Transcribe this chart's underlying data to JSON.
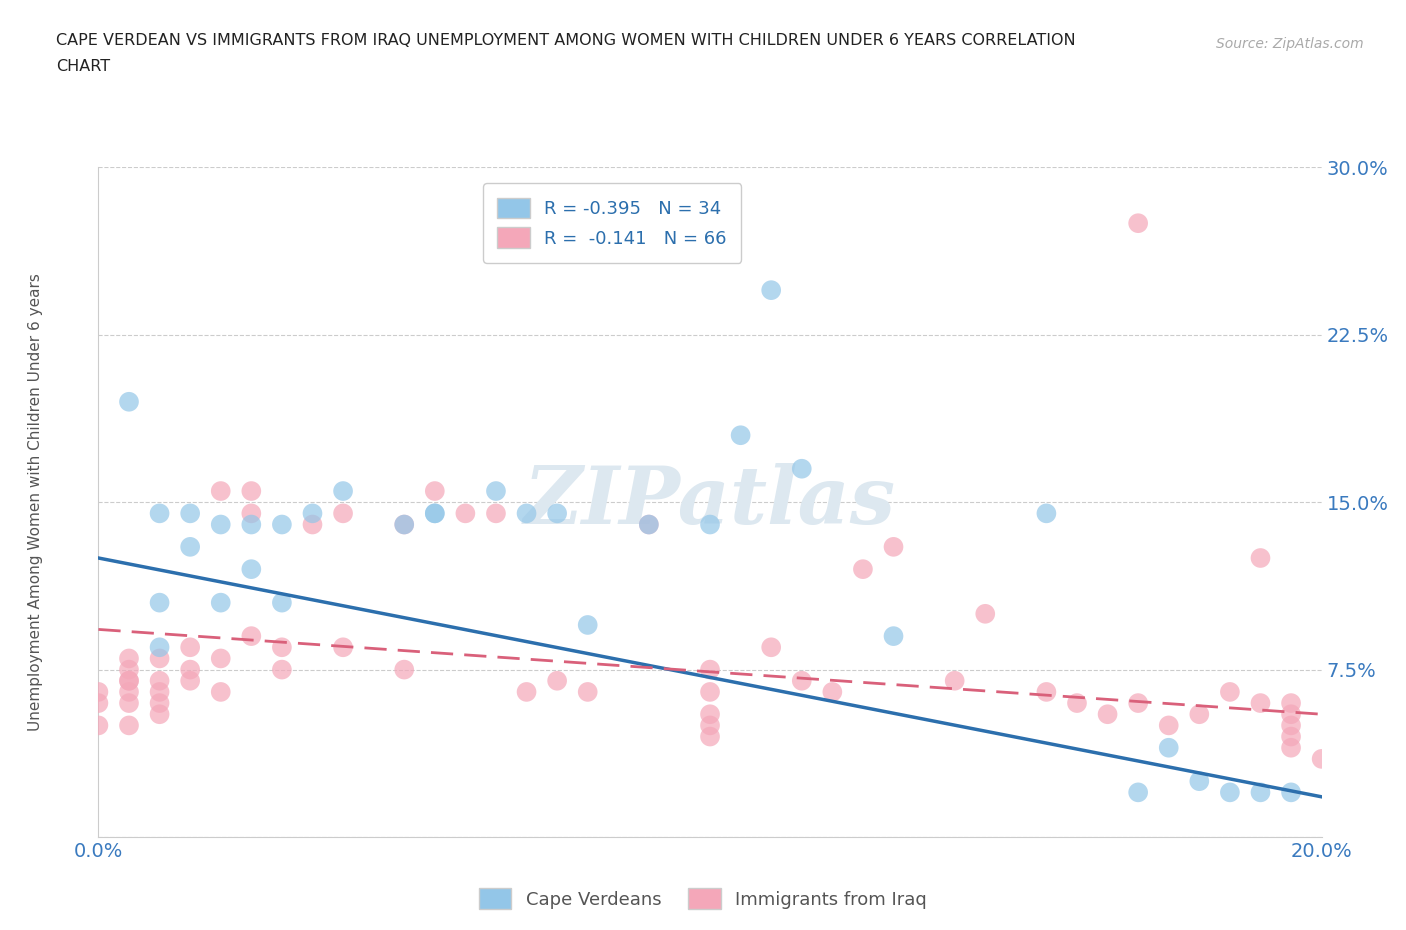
{
  "title_line1": "CAPE VERDEAN VS IMMIGRANTS FROM IRAQ UNEMPLOYMENT AMONG WOMEN WITH CHILDREN UNDER 6 YEARS CORRELATION",
  "title_line2": "CHART",
  "source": "Source: ZipAtlas.com",
  "ylabel_label": "Unemployment Among Women with Children Under 6 years",
  "xlim": [
    0.0,
    0.2
  ],
  "ylim": [
    0.0,
    0.3
  ],
  "xticks": [
    0.0,
    0.025,
    0.05,
    0.075,
    0.1,
    0.125,
    0.15,
    0.175,
    0.2
  ],
  "yticks": [
    0.0,
    0.075,
    0.15,
    0.225,
    0.3
  ],
  "blue_color": "#93c6e8",
  "pink_color": "#f4a7b9",
  "blue_line_color": "#2c6fad",
  "pink_line_color": "#d9607a",
  "legend_text1": "R = -0.395   N = 34",
  "legend_text2": "R =  -0.141   N = 66",
  "watermark": "ZIPatlas",
  "blue_scatter_x": [
    0.005,
    0.01,
    0.01,
    0.01,
    0.015,
    0.015,
    0.02,
    0.02,
    0.025,
    0.025,
    0.03,
    0.03,
    0.035,
    0.04,
    0.05,
    0.055,
    0.055,
    0.065,
    0.07,
    0.075,
    0.08,
    0.09,
    0.1,
    0.105,
    0.11,
    0.115,
    0.13,
    0.155,
    0.17,
    0.175,
    0.18,
    0.185,
    0.19,
    0.195
  ],
  "blue_scatter_y": [
    0.195,
    0.145,
    0.105,
    0.085,
    0.145,
    0.13,
    0.14,
    0.105,
    0.14,
    0.12,
    0.14,
    0.105,
    0.145,
    0.155,
    0.14,
    0.145,
    0.145,
    0.155,
    0.145,
    0.145,
    0.095,
    0.14,
    0.14,
    0.18,
    0.245,
    0.165,
    0.09,
    0.145,
    0.02,
    0.04,
    0.025,
    0.02,
    0.02,
    0.02
  ],
  "pink_scatter_x": [
    0.0,
    0.0,
    0.0,
    0.005,
    0.005,
    0.005,
    0.005,
    0.005,
    0.005,
    0.005,
    0.01,
    0.01,
    0.01,
    0.01,
    0.01,
    0.015,
    0.015,
    0.015,
    0.02,
    0.02,
    0.02,
    0.025,
    0.025,
    0.025,
    0.03,
    0.03,
    0.035,
    0.04,
    0.04,
    0.05,
    0.05,
    0.055,
    0.06,
    0.065,
    0.07,
    0.075,
    0.08,
    0.09,
    0.1,
    0.1,
    0.1,
    0.1,
    0.1,
    0.11,
    0.115,
    0.12,
    0.125,
    0.13,
    0.14,
    0.145,
    0.155,
    0.16,
    0.165,
    0.17,
    0.175,
    0.17,
    0.18,
    0.185,
    0.19,
    0.19,
    0.195,
    0.195,
    0.195,
    0.195,
    0.195,
    0.2
  ],
  "pink_scatter_y": [
    0.065,
    0.06,
    0.05,
    0.07,
    0.075,
    0.08,
    0.07,
    0.065,
    0.06,
    0.05,
    0.08,
    0.07,
    0.065,
    0.06,
    0.055,
    0.085,
    0.075,
    0.07,
    0.155,
    0.08,
    0.065,
    0.09,
    0.155,
    0.145,
    0.085,
    0.075,
    0.14,
    0.145,
    0.085,
    0.14,
    0.075,
    0.155,
    0.145,
    0.145,
    0.065,
    0.07,
    0.065,
    0.14,
    0.075,
    0.065,
    0.055,
    0.05,
    0.045,
    0.085,
    0.07,
    0.065,
    0.12,
    0.13,
    0.07,
    0.1,
    0.065,
    0.06,
    0.055,
    0.06,
    0.05,
    0.275,
    0.055,
    0.065,
    0.125,
    0.06,
    0.06,
    0.055,
    0.05,
    0.045,
    0.04,
    0.035
  ],
  "blue_line_x0": 0.0,
  "blue_line_y0": 0.125,
  "blue_line_x1": 0.2,
  "blue_line_y1": 0.018,
  "pink_line_x0": 0.0,
  "pink_line_y0": 0.093,
  "pink_line_x1": 0.2,
  "pink_line_y1": 0.055,
  "background_color": "#ffffff",
  "grid_color": "#cccccc"
}
